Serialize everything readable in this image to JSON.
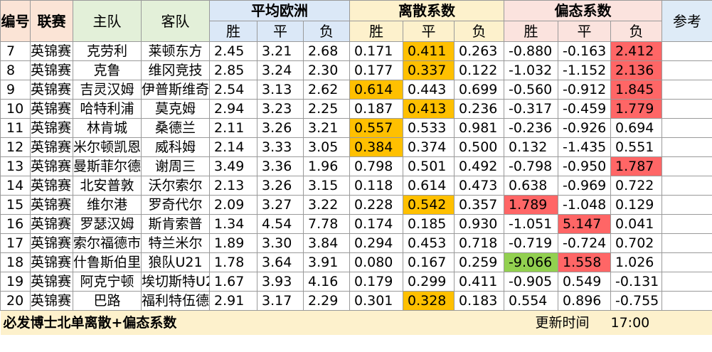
{
  "header": {
    "col_id": "编号",
    "col_league": "联赛",
    "col_home": "主队",
    "col_away": "客队",
    "group_avg": "平均欧洲",
    "group_disp": "离散系数",
    "group_skew": "偏态系数",
    "col_ref": "参考",
    "sub_win": "胜",
    "sub_draw": "平",
    "sub_lose": "负"
  },
  "rows": [
    {
      "id": "7",
      "league": "英锦赛",
      "home": "克劳利",
      "away": "莱顿东方",
      "avg": [
        "2.45",
        "3.21",
        "2.68"
      ],
      "disp": [
        "0.171",
        "0.411",
        "0.263"
      ],
      "skew": [
        "-0.880",
        "-0.163",
        "2.412"
      ]
    },
    {
      "id": "8",
      "league": "英锦赛",
      "home": "克鲁",
      "away": "维冈竞技",
      "avg": [
        "2.85",
        "3.24",
        "2.30"
      ],
      "disp": [
        "0.177",
        "0.337",
        "0.122"
      ],
      "skew": [
        "-1.032",
        "-1.152",
        "2.136"
      ]
    },
    {
      "id": "9",
      "league": "英锦赛",
      "home": "吉灵汉姆",
      "away": "伊普斯维奇",
      "avg": [
        "2.54",
        "3.13",
        "2.62"
      ],
      "disp": [
        "0.614",
        "0.443",
        "0.699"
      ],
      "skew": [
        "-0.560",
        "-0.912",
        "1.845"
      ]
    },
    {
      "id": "10",
      "league": "英锦赛",
      "home": "哈特利浦",
      "away": "莫克姆",
      "avg": [
        "2.94",
        "3.23",
        "2.25"
      ],
      "disp": [
        "0.187",
        "0.413",
        "0.236"
      ],
      "skew": [
        "-0.317",
        "-0.459",
        "1.779"
      ]
    },
    {
      "id": "11",
      "league": "英锦赛",
      "home": "林肯城",
      "away": "桑德兰",
      "avg": [
        "2.11",
        "3.26",
        "3.21"
      ],
      "disp": [
        "0.557",
        "0.533",
        "0.981"
      ],
      "skew": [
        "-0.236",
        "-0.926",
        "0.694"
      ]
    },
    {
      "id": "12",
      "league": "英锦赛",
      "home": "米尔顿凯恩斯",
      "away": "威科姆",
      "avg": [
        "2.14",
        "3.33",
        "3.05"
      ],
      "disp": [
        "0.384",
        "0.374",
        "0.500"
      ],
      "skew": [
        "0.132",
        "-1.435",
        "0.551"
      ]
    },
    {
      "id": "13",
      "league": "英锦赛",
      "home": "曼斯菲尔德",
      "away": "谢周三",
      "avg": [
        "3.49",
        "3.36",
        "1.96"
      ],
      "disp": [
        "0.798",
        "0.501",
        "0.492"
      ],
      "skew": [
        "-0.798",
        "-0.950",
        "1.787"
      ]
    },
    {
      "id": "14",
      "league": "英锦赛",
      "home": "北安普敦",
      "away": "沃尔索尔",
      "avg": [
        "2.13",
        "3.26",
        "3.15"
      ],
      "disp": [
        "0.118",
        "0.614",
        "0.473"
      ],
      "skew": [
        "0.638",
        "-0.969",
        "0.722"
      ]
    },
    {
      "id": "15",
      "league": "英锦赛",
      "home": "维尔港",
      "away": "罗奇代尔",
      "avg": [
        "2.09",
        "3.27",
        "3.22"
      ],
      "disp": [
        "0.228",
        "0.542",
        "0.357"
      ],
      "skew": [
        "1.789",
        "-1.048",
        "0.129"
      ]
    },
    {
      "id": "16",
      "league": "英锦赛",
      "home": "罗瑟汉姆",
      "away": "斯肯索普",
      "avg": [
        "1.34",
        "4.54",
        "7.78"
      ],
      "disp": [
        "0.174",
        "0.185",
        "0.930"
      ],
      "skew": [
        "-1.051",
        "5.147",
        "0.041"
      ]
    },
    {
      "id": "17",
      "league": "英锦赛",
      "home": "索尔福德市",
      "away": "特兰米尔",
      "avg": [
        "1.89",
        "3.30",
        "3.84"
      ],
      "disp": [
        "0.294",
        "0.453",
        "0.718"
      ],
      "skew": [
        "-0.719",
        "-0.724",
        "0.702"
      ]
    },
    {
      "id": "18",
      "league": "英锦赛",
      "home": "什鲁斯伯里",
      "away": "狼队U21",
      "avg": [
        "1.78",
        "3.64",
        "3.91"
      ],
      "disp": [
        "0.080",
        "0.167",
        "0.259"
      ],
      "skew": [
        "-9.066",
        "1.558",
        "1.026"
      ]
    },
    {
      "id": "19",
      "league": "英锦赛",
      "home": "阿克宁顿",
      "away": "埃切斯特U2",
      "avg": [
        "1.67",
        "3.93",
        "4.16"
      ],
      "disp": [
        "0.179",
        "0.299",
        "0.411"
      ],
      "skew": [
        "-0.905",
        "0.549",
        "-0.131"
      ]
    },
    {
      "id": "20",
      "league": "英锦赛",
      "home": "巴路",
      "away": "福利特伍德",
      "avg": [
        "2.91",
        "3.17",
        "2.29"
      ],
      "disp": [
        "0.301",
        "0.328",
        "0.183"
      ],
      "skew": [
        "0.554",
        "0.896",
        "-0.755"
      ]
    }
  ],
  "highlights": [
    {
      "row": 0,
      "group": "disp",
      "idx": 1,
      "color": "orange"
    },
    {
      "row": 0,
      "group": "skew",
      "idx": 2,
      "color": "red"
    },
    {
      "row": 1,
      "group": "disp",
      "idx": 1,
      "color": "orange"
    },
    {
      "row": 1,
      "group": "skew",
      "idx": 2,
      "color": "red"
    },
    {
      "row": 2,
      "group": "disp",
      "idx": 0,
      "color": "orange"
    },
    {
      "row": 2,
      "group": "skew",
      "idx": 2,
      "color": "red"
    },
    {
      "row": 3,
      "group": "disp",
      "idx": 1,
      "color": "orange"
    },
    {
      "row": 3,
      "group": "skew",
      "idx": 2,
      "color": "red"
    },
    {
      "row": 4,
      "group": "disp",
      "idx": 0,
      "color": "orange"
    },
    {
      "row": 5,
      "group": "disp",
      "idx": 0,
      "color": "orange"
    },
    {
      "row": 6,
      "group": "skew",
      "idx": 2,
      "color": "red"
    },
    {
      "row": 8,
      "group": "disp",
      "idx": 1,
      "color": "orange"
    },
    {
      "row": 8,
      "group": "skew",
      "idx": 0,
      "color": "red"
    },
    {
      "row": 9,
      "group": "skew",
      "idx": 1,
      "color": "red"
    },
    {
      "row": 11,
      "group": "skew",
      "idx": 0,
      "color": "green"
    },
    {
      "row": 11,
      "group": "skew",
      "idx": 1,
      "color": "red"
    },
    {
      "row": 13,
      "group": "disp",
      "idx": 1,
      "color": "orange"
    }
  ],
  "footer": {
    "title": "必发博士北单离散+偏态系数",
    "update_label": "更新时间",
    "update_time": "17:00"
  },
  "colors": {
    "orange": "#ffc000",
    "red": "#ff6666",
    "green": "#92d050",
    "header_avg": "#dbe8f7",
    "header_disp": "#fdf1cc",
    "header_skew": "#fbe3de"
  }
}
